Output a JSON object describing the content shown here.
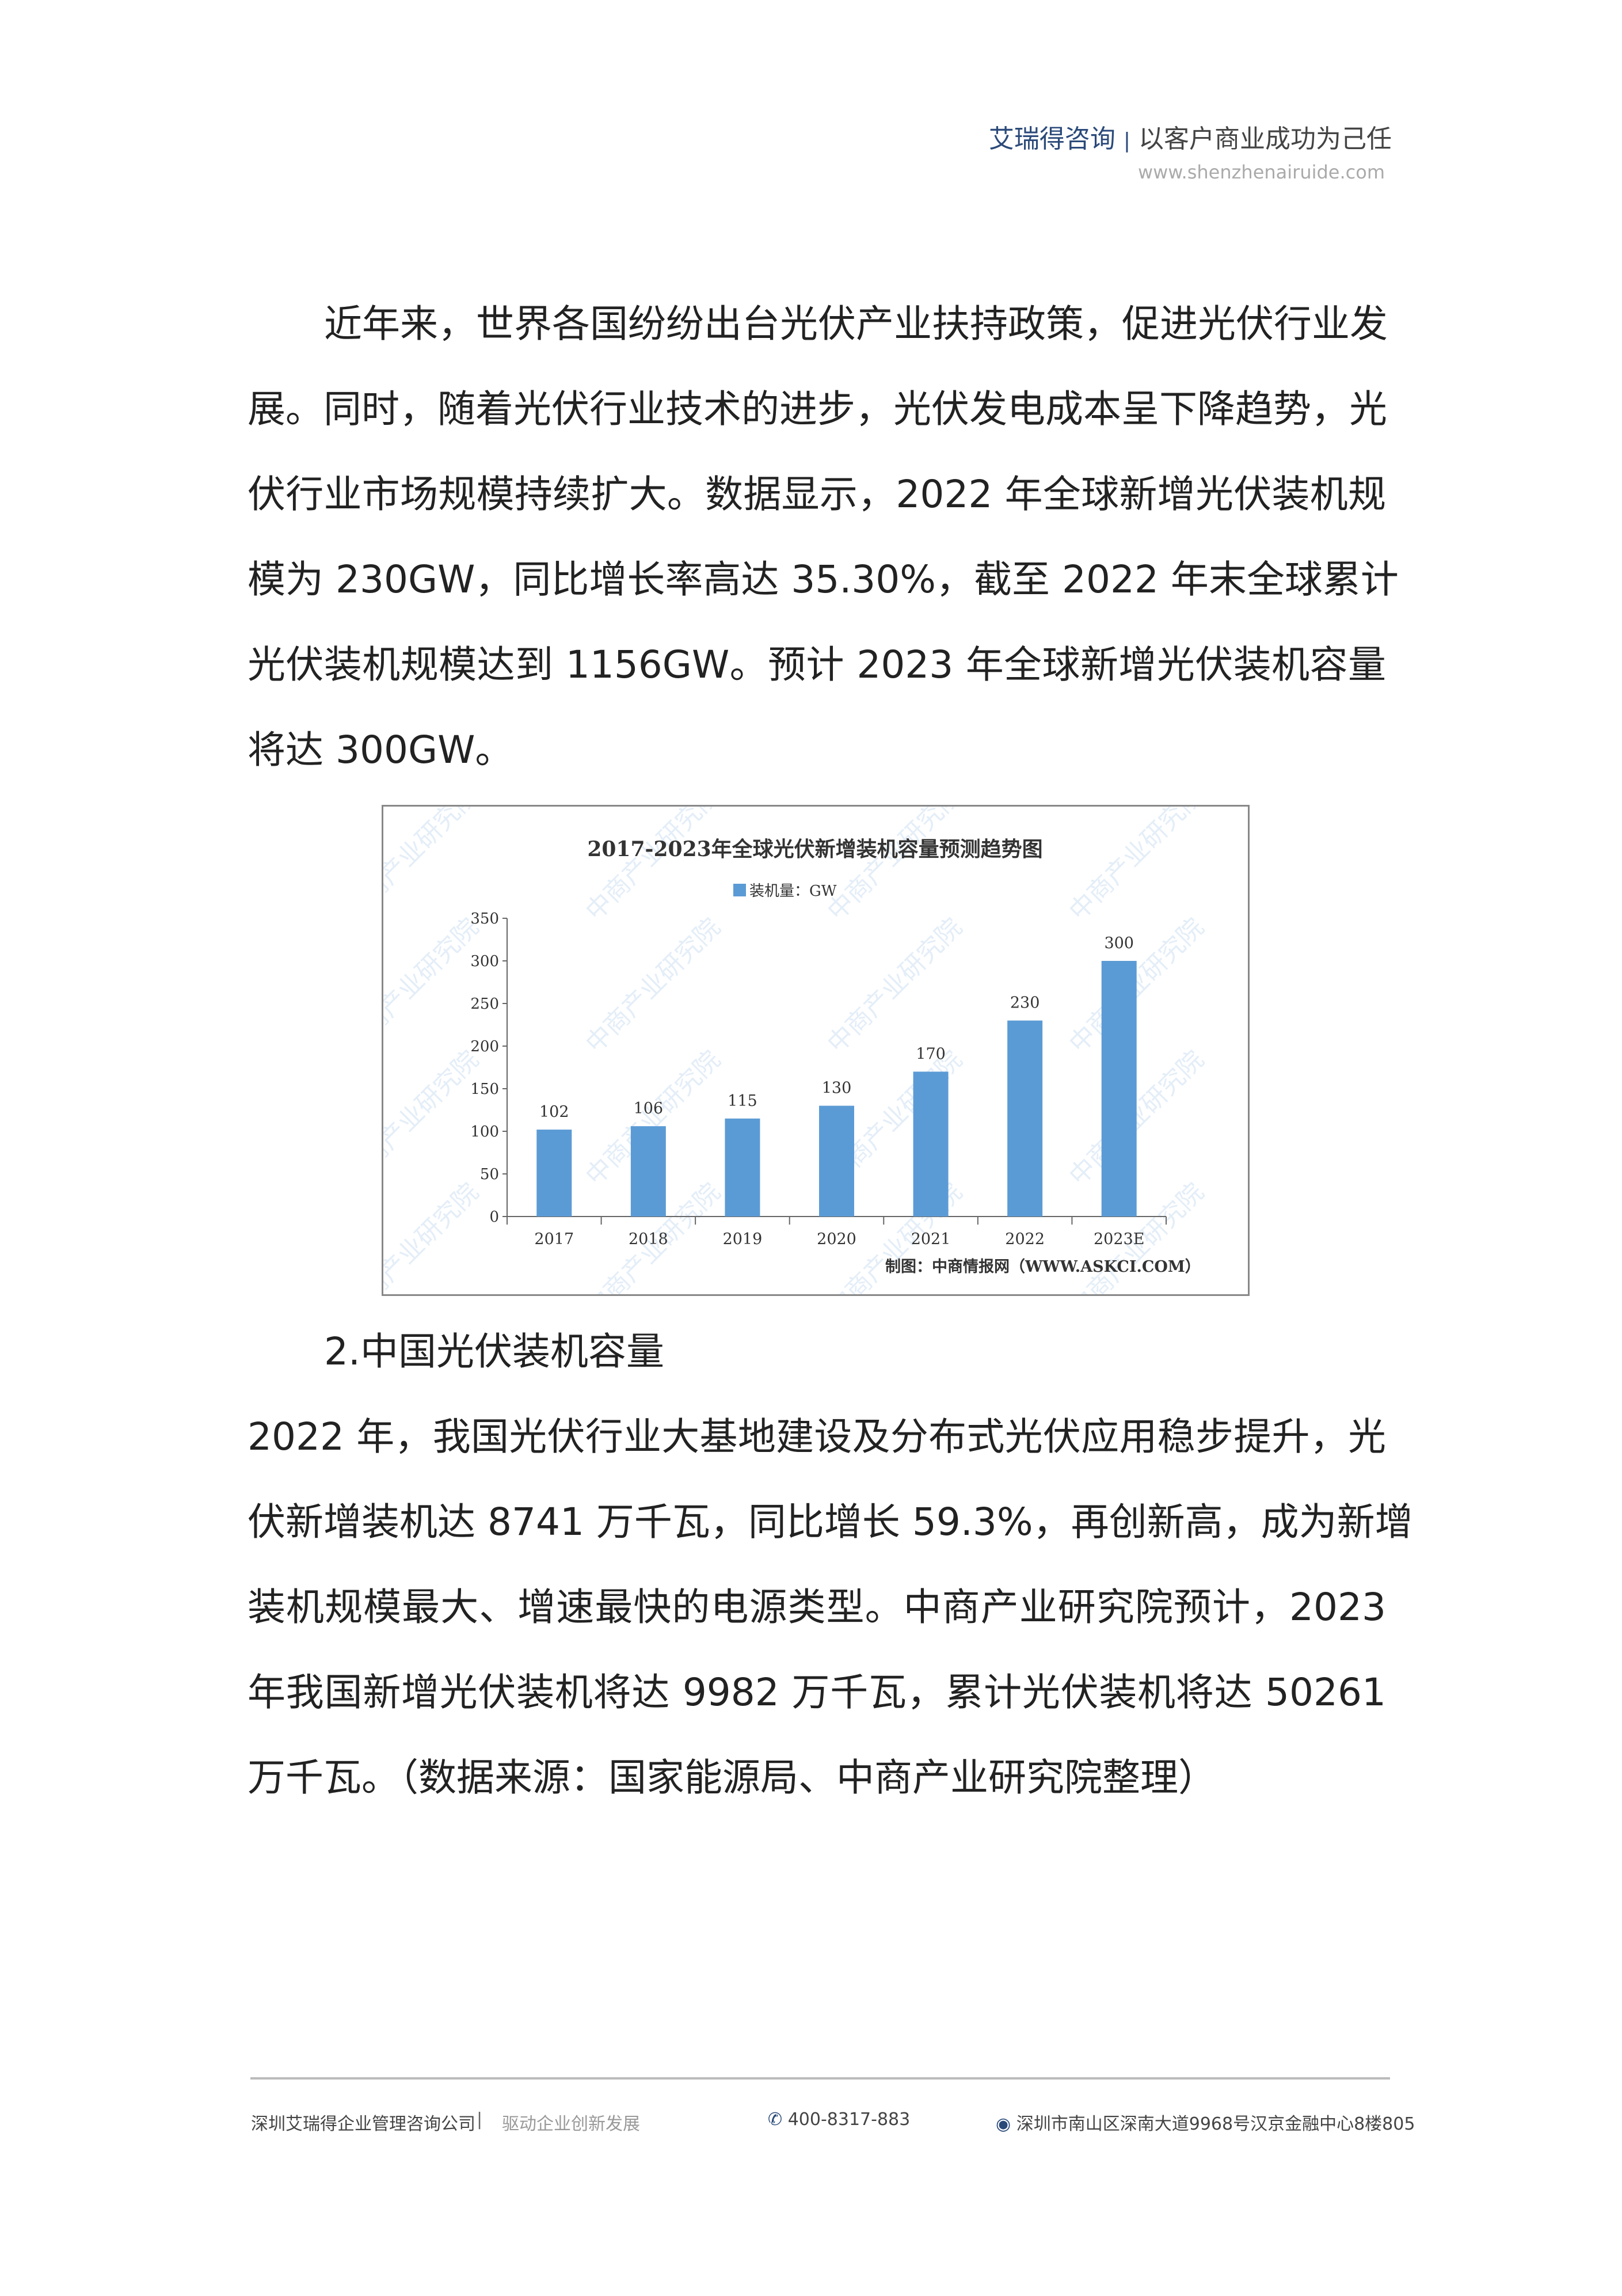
{
  "header": {
    "brand": "艾瑞得咨询",
    "separator": "|",
    "slogan": "以客户商业成功为己任",
    "url": "www.shenzhenairuide.com"
  },
  "body": {
    "paragraph1": [
      "近年来，世界各国纷纷出台光伏产业扶持政策，促进光伏行业发",
      "展。同时，随着光伏行业技术的进步，光伏发电成本呈下降趋势，光",
      "伏行业市场规模持续扩大。数据显示，2022 年全球新增光伏装机规",
      "模为 230GW，同比增长率高达 35.30%，截至 2022 年末全球累计",
      "光伏装机规模达到 1156GW。预计 2023 年全球新增光伏装机容量",
      "将达 300GW。"
    ],
    "section_heading": "2.中国光伏装机容量",
    "paragraph2": [
      "2022 年，我国光伏行业大基地建设及分布式光伏应用稳步提升，光",
      "伏新增装机达 8741 万千瓦，同比增长 59.3%，再创新高，成为新增",
      "装机规模最大、增速最快的电源类型。中商产业研究院预计，2023",
      "年我国新增光伏装机将达 9982 万千瓦，累计光伏装机将达 50261",
      "万千瓦。（数据来源：国家能源局、中商产业研究院整理）"
    ]
  },
  "chart_data": {
    "type": "bar",
    "title": "2017-2023年全球光伏新增装机容量预测趋势图",
    "legend": [
      {
        "name": "装机量：GW",
        "color": "#5b9bd5"
      }
    ],
    "legend_position": "top",
    "categories": [
      "2017",
      "2018",
      "2019",
      "2020",
      "2021",
      "2022",
      "2023E"
    ],
    "series": [
      {
        "name": "装机量：GW",
        "values": [
          102,
          106,
          115,
          130,
          170,
          230,
          300
        ]
      }
    ],
    "data_labels": [
      "102",
      "106",
      "115",
      "130",
      "170",
      "230",
      "300"
    ],
    "ylim": [
      0,
      350
    ],
    "yticks": [
      "0",
      "50",
      "100",
      "150",
      "200",
      "250",
      "300",
      "350"
    ],
    "grid": false,
    "source": "制图：中商情报网（WWW.ASKCI.COM）",
    "watermark": "中商产业研究院",
    "bar_color": "#5b9bd5"
  },
  "footer": {
    "company": "深圳艾瑞得企业管理咨询公司",
    "separator": "|",
    "tagline": "驱动企业创新发展",
    "phone": "400-8317-883",
    "address": "深圳市南山区深南大道9968号汉京金融中心8楼805",
    "icons": [
      "phone-icon",
      "location-pin-icon"
    ]
  }
}
